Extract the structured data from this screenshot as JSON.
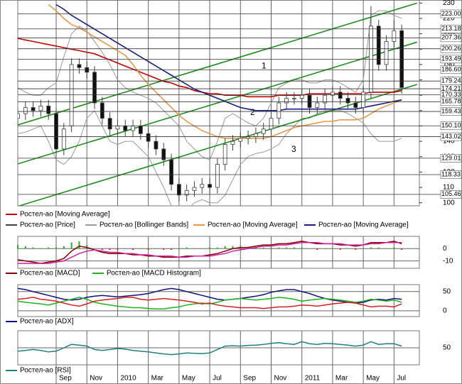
{
  "chart_data": [
    {
      "type": "candlestick",
      "xlim": [
        0,
        52.3
      ],
      "xticks": [
        {
          "value": 5,
          "label": "Sep"
        },
        {
          "value": 9,
          "label": "Nov"
        },
        {
          "value": 13,
          "label": "2010"
        },
        {
          "value": 17,
          "label": "Mar"
        },
        {
          "value": 21,
          "label": "May"
        },
        {
          "value": 25,
          "label": "Jul"
        },
        {
          "value": 29,
          "label": "Sep"
        },
        {
          "value": 33,
          "label": "Nov"
        },
        {
          "value": 37,
          "label": "2011"
        },
        {
          "value": 41,
          "label": "Mar"
        },
        {
          "value": 45,
          "label": "May"
        },
        {
          "value": 49,
          "label": "Jul"
        }
      ],
      "ylim": [
        98,
        232
      ],
      "yticks": [
        100,
        110,
        120,
        130,
        140,
        150,
        160,
        170,
        180,
        190,
        200,
        210,
        220,
        230
      ],
      "levels": [
        {
          "value": 223,
          "label": "223.00"
        },
        {
          "value": 213.18,
          "label": "213.18"
        },
        {
          "value": 207.36,
          "label": "207.36"
        },
        {
          "value": 200.26,
          "label": "200.26"
        },
        {
          "value": 193.49,
          "label": "193.49"
        },
        {
          "value": 186.6,
          "label": "186.60"
        },
        {
          "value": 179.24,
          "label": "179.24"
        },
        {
          "value": 174.21,
          "label": "174.21"
        },
        {
          "value": 170.33,
          "label": "170.33"
        },
        {
          "value": 165.78,
          "label": "165.78"
        },
        {
          "value": 159.43,
          "label": "159.43"
        },
        {
          "value": 150.1,
          "label": "150.10"
        },
        {
          "value": 143.02,
          "label": "143.02"
        },
        {
          "value": 129.01,
          "label": "129.01"
        },
        {
          "value": 118.33,
          "label": "118.33"
        },
        {
          "value": 105.46,
          "label": "105.46"
        }
      ],
      "trendlines": [
        {
          "label": "1",
          "color": "#1f8a1f",
          "x": [
            0,
            52
          ],
          "values": [
            150.7,
            230
          ]
        },
        {
          "label": "2",
          "color": "#1f8a1f",
          "x": [
            0,
            52
          ],
          "values": [
            125.3,
            204.6
          ]
        },
        {
          "label": "3",
          "color": "#1f8a1f",
          "x": [
            0,
            52
          ],
          "values": [
            97.7,
            177
          ]
        }
      ],
      "price": {
        "name": "Ростел-ао [Price]",
        "color": "#404040",
        "open": [
          155,
          158,
          162,
          160,
          163,
          158,
          135,
          150,
          190,
          188,
          185,
          165,
          155,
          148,
          150,
          147,
          150,
          145,
          140,
          135,
          128,
          112,
          105,
          108,
          110,
          112,
          110,
          125,
          138,
          140,
          142,
          143,
          145,
          148,
          155,
          165,
          168,
          168,
          170,
          162,
          165,
          170,
          172,
          168,
          165,
          162,
          172,
          215,
          190,
          205,
          212
        ],
        "high": [
          162,
          166,
          166,
          167,
          167,
          162,
          152,
          194,
          194,
          192,
          189,
          169,
          159,
          154,
          154,
          154,
          154,
          149,
          144,
          139,
          132,
          116,
          112,
          114,
          116,
          116,
          129,
          142,
          144,
          146,
          147,
          149,
          152,
          159,
          169,
          172,
          172,
          174,
          174,
          169,
          174,
          176,
          176,
          172,
          169,
          176,
          228,
          219,
          209,
          219,
          216
        ],
        "low": [
          151,
          154,
          156,
          156,
          154,
          131,
          131,
          146,
          184,
          181,
          161,
          151,
          144,
          144,
          143,
          143,
          141,
          136,
          131,
          124,
          108,
          101,
          101,
          104,
          106,
          106,
          106,
          121,
          134,
          136,
          138,
          139,
          141,
          144,
          151,
          161,
          164,
          164,
          158,
          158,
          161,
          166,
          164,
          161,
          158,
          158,
          168,
          186,
          186,
          201,
          171
        ],
        "close": [
          158,
          162,
          160,
          163,
          158,
          135,
          148,
          190,
          188,
          185,
          165,
          155,
          148,
          150,
          147,
          150,
          145,
          140,
          135,
          128,
          112,
          105,
          108,
          110,
          112,
          110,
          125,
          138,
          140,
          142,
          143,
          145,
          148,
          155,
          165,
          168,
          168,
          170,
          162,
          165,
          170,
          172,
          168,
          165,
          162,
          172,
          215,
          190,
          205,
          212,
          175
        ]
      },
      "series": [
        {
          "name": "Ростел-ао [Moving Average]",
          "color": "#c00000",
          "values": [
            207,
            206,
            205,
            204,
            203,
            202,
            201,
            200,
            199,
            198,
            197,
            195,
            193,
            191,
            189,
            187,
            185,
            183,
            181,
            179,
            178,
            176,
            175,
            173,
            172,
            171,
            171,
            170,
            170,
            170,
            169,
            169,
            169,
            169,
            170,
            170,
            170,
            170,
            171,
            171,
            171,
            171,
            171,
            171,
            171,
            171,
            172,
            172,
            172,
            172,
            173
          ]
        },
        {
          "name": "Ростел-ао [Bollinger Bands]",
          "color": "#9a9a9a",
          "upper": [
            175,
            172,
            170,
            170,
            175,
            178,
            195,
            210,
            215,
            212,
            205,
            198,
            190,
            180,
            175,
            172,
            170,
            168,
            165,
            160,
            155,
            150,
            140,
            135,
            130,
            128,
            140,
            155,
            158,
            155,
            152,
            150,
            155,
            165,
            175,
            178,
            180,
            180,
            178,
            178,
            180,
            180,
            178,
            175,
            172,
            180,
            222,
            225,
            225,
            222,
            220
          ],
          "lower": [
            145,
            146,
            148,
            150,
            140,
            128,
            125,
            130,
            140,
            155,
            160,
            150,
            140,
            138,
            140,
            140,
            135,
            130,
            120,
            110,
            98,
            92,
            95,
            100,
            102,
            100,
            100,
            105,
            115,
            125,
            130,
            132,
            133,
            135,
            138,
            145,
            150,
            155,
            155,
            158,
            160,
            160,
            160,
            158,
            155,
            152,
            145,
            140,
            140,
            140,
            142
          ]
        },
        {
          "name": "Ростел-ао [Moving Average]",
          "color": "#e39a4f",
          "values": [
            null,
            null,
            null,
            null,
            229,
            225,
            220,
            216,
            214,
            211,
            208,
            205,
            202,
            199,
            196,
            190,
            183,
            177,
            172,
            167,
            162,
            157,
            153,
            150,
            147,
            145,
            143,
            142,
            142,
            142,
            142,
            142,
            142,
            143,
            145,
            147,
            149,
            150,
            151,
            152,
            153,
            153,
            154,
            154,
            154,
            155,
            158,
            161,
            163,
            165,
            167
          ]
        },
        {
          "name": "Ростел-ао [Moving Average]",
          "color": "#1a1f7a",
          "values": [
            null,
            null,
            null,
            null,
            null,
            229,
            226,
            222,
            219,
            216,
            213,
            210,
            207,
            204,
            201,
            198,
            195,
            192,
            189,
            186,
            183,
            180,
            177,
            174,
            172,
            170,
            168,
            166,
            164,
            162,
            161,
            160,
            160,
            160,
            160,
            161,
            161,
            161,
            161,
            161,
            161,
            161,
            161,
            161,
            161,
            162,
            163,
            164,
            165,
            166,
            167
          ]
        }
      ]
    },
    {
      "type": "macd",
      "ylim": [
        -16,
        10
      ],
      "yticks": [
        -10,
        0
      ],
      "series": [
        {
          "name": "Ростел-ао [MACD]",
          "color": "#800000",
          "values": [
            -9,
            -10,
            -11,
            -12,
            -11,
            -10,
            -8,
            -2,
            2,
            1,
            -1,
            -3,
            -4,
            -4,
            -4,
            -5,
            -5,
            -6,
            -6,
            -7,
            -7,
            -7,
            -6,
            -6,
            -6,
            -5,
            -4,
            -2,
            0,
            1,
            1,
            2,
            3,
            3,
            4,
            4,
            5,
            6,
            5,
            4,
            4,
            4,
            3,
            3,
            2,
            3,
            5,
            5,
            5,
            6,
            4
          ]
        },
        {
          "color": "#d020a0",
          "values": [
            -12,
            -12,
            -12,
            -12,
            -12,
            -11,
            -10,
            -7,
            -4,
            -2,
            -1,
            -2,
            -3,
            -3,
            -4,
            -4,
            -5,
            -5,
            -6,
            -6,
            -6,
            -7,
            -7,
            -6,
            -6,
            -6,
            -5,
            -4,
            -2,
            -1,
            0,
            1,
            2,
            2,
            3,
            3,
            4,
            5,
            5,
            5,
            4,
            4,
            4,
            3,
            3,
            3,
            4,
            4,
            5,
            5,
            5
          ]
        }
      ],
      "histogram": {
        "name": "Ростел-ао [MACD Histogram]",
        "color": "#22b022",
        "negative_color": "#e02020",
        "values": [
          3,
          2,
          1,
          0,
          1,
          1,
          2,
          5,
          6,
          3,
          0,
          -1,
          -1,
          -1,
          0,
          -1,
          0,
          -1,
          0,
          -1,
          -1,
          0,
          1,
          0,
          0,
          1,
          1,
          2,
          2,
          2,
          1,
          1,
          1,
          1,
          1,
          1,
          1,
          1,
          0,
          -1,
          0,
          0,
          -1,
          0,
          -1,
          0,
          1,
          1,
          0,
          1,
          -1
        ]
      }
    },
    {
      "type": "line",
      "ylim": [
        -15,
        68
      ],
      "yticks": [
        0,
        50
      ],
      "series": [
        {
          "name": "Ростел-ао [ADX]",
          "color": "#10107a",
          "values": [
            58,
            55,
            50,
            45,
            40,
            35,
            30,
            28,
            30,
            35,
            38,
            40,
            38,
            36,
            38,
            40,
            42,
            45,
            50,
            55,
            58,
            55,
            50,
            45,
            40,
            35,
            30,
            28,
            30,
            32,
            35,
            38,
            42,
            48,
            52,
            55,
            55,
            50,
            45,
            38,
            32,
            28,
            25,
            22,
            20,
            22,
            28,
            30,
            28,
            32,
            30
          ]
        },
        {
          "color": "#22b022",
          "values": [
            25,
            22,
            20,
            18,
            15,
            20,
            25,
            30,
            35,
            30,
            22,
            18,
            15,
            12,
            10,
            8,
            8,
            6,
            5,
            5,
            8,
            10,
            15,
            18,
            20,
            18,
            22,
            28,
            30,
            32,
            30,
            28,
            30,
            32,
            35,
            33,
            30,
            25,
            28,
            30,
            32,
            30,
            28,
            25,
            22,
            25,
            30,
            28,
            25,
            28,
            22
          ]
        },
        {
          "color": "#d02020",
          "values": [
            30,
            32,
            35,
            30,
            28,
            25,
            20,
            15,
            12,
            18,
            25,
            28,
            30,
            32,
            35,
            35,
            30,
            28,
            30,
            32,
            30,
            28,
            25,
            22,
            18,
            20,
            15,
            12,
            10,
            8,
            8,
            8,
            6,
            8,
            10,
            10,
            12,
            15,
            14,
            12,
            15,
            18,
            20,
            22,
            20,
            15,
            10,
            12,
            12,
            10,
            18
          ]
        }
      ]
    },
    {
      "type": "line",
      "ylim": [
        0,
        100
      ],
      "yticks": [
        50
      ],
      "series": [
        {
          "name": "Ростел-ао [RSI]",
          "color": "#1f7f7f",
          "values": [
            40,
            42,
            45,
            42,
            38,
            40,
            50,
            60,
            58,
            55,
            45,
            42,
            45,
            48,
            46,
            42,
            40,
            38,
            35,
            32,
            30,
            32,
            35,
            34,
            33,
            35,
            45,
            55,
            56,
            55,
            57,
            58,
            60,
            63,
            65,
            62,
            60,
            68,
            62,
            60,
            63,
            62,
            60,
            58,
            55,
            58,
            68,
            60,
            62,
            62,
            55
          ]
        }
      ]
    }
  ]
}
